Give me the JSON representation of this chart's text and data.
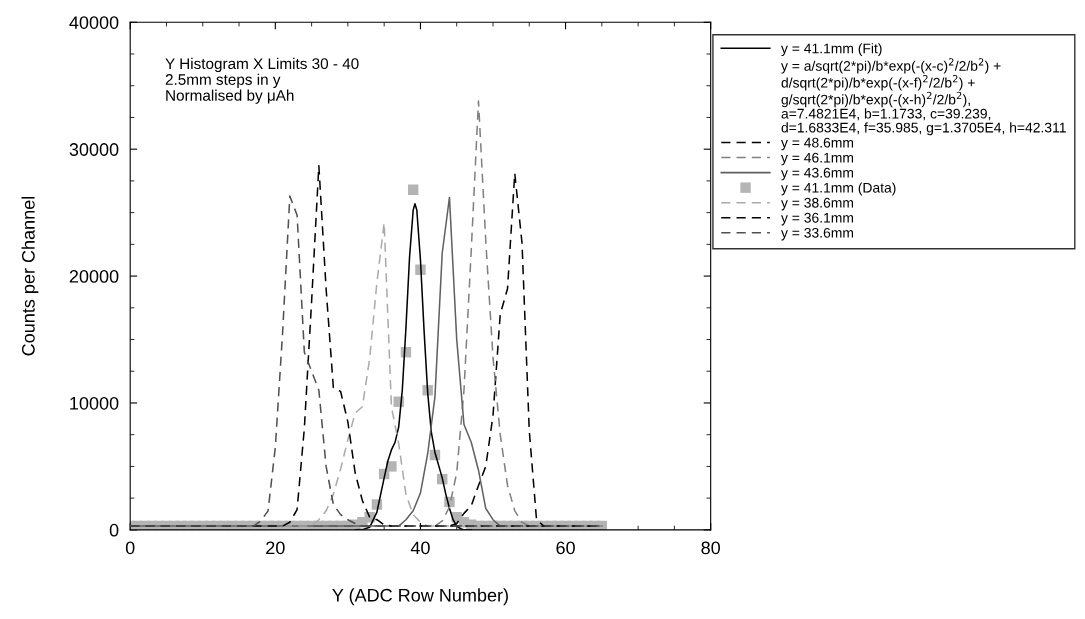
{
  "chart_data": {
    "type": "line",
    "xlabel": "Y (ADC Row Number)",
    "ylabel": "Counts per Channel",
    "xlim": [
      0,
      80
    ],
    "xticks": [
      0,
      20,
      40,
      60,
      80
    ],
    "ylim": [
      0,
      40000
    ],
    "yticks": [
      0,
      10000,
      20000,
      30000,
      40000
    ],
    "grid": false,
    "legend": "top right",
    "annotations": [
      "Y Histogram X Limits 30 - 40",
      "2.5mm steps in y",
      "Normalised by μAh",
      "y = a/sqrt(2*pi)/b*exp(-(x-c)$^{2}$/2/b$^{2}$) +\nd/sqrt(2*pi)/b*exp(-(x-f)$^{2}$/2/b$^{2}$) +\ng/sqrt(2*pi)/b*exp(-(x-h)$^{2}$/2/b$^{2}$),\na=7.4821E4, b=1.1733, c=39.239,\nd=1.6833E4, f=35.985, g=1.3705E4, h=42.311"
    ],
    "series": [
      {
        "name": "y = 41.1mm (Fit)",
        "line_style": "solid",
        "color": "#000000",
        "x": [
          31,
          32,
          33,
          34,
          35,
          35.5,
          36,
          36.5,
          37,
          37.5,
          38,
          38.5,
          39,
          39.24,
          39.5,
          40,
          40.5,
          41,
          41.5,
          42,
          42.5,
          43,
          43.5,
          44,
          44.5,
          45,
          45.5,
          46,
          47
        ],
        "values": [
          0,
          20,
          200,
          1400,
          4100,
          5400,
          6300,
          6900,
          8100,
          11000,
          15900,
          21500,
          25200,
          25700,
          25200,
          21300,
          15700,
          10800,
          7700,
          6100,
          5100,
          4100,
          2800,
          1700,
          800,
          300,
          100,
          0,
          0
        ]
      },
      {
        "name": "y = 48.6mm",
        "line_style": "dashed",
        "color": "#000000",
        "x": [
          0,
          44,
          45,
          46,
          47,
          48,
          49,
          50,
          51,
          52,
          53,
          54,
          55,
          56,
          57,
          65
        ],
        "values": [
          300,
          300,
          500,
          1300,
          1900,
          3500,
          5000,
          9000,
          17000,
          19000,
          28100,
          22600,
          7800,
          800,
          300,
          300
        ]
      },
      {
        "name": "y = 46.1mm",
        "line_style": "dashed",
        "color": "#808080",
        "x": [
          0,
          42,
          43,
          44,
          45,
          46,
          47,
          48,
          49,
          50,
          51,
          52,
          53,
          54,
          55,
          65
        ],
        "values": [
          300,
          300,
          700,
          1800,
          4500,
          11000,
          22000,
          33800,
          22800,
          13600,
          7500,
          3500,
          1500,
          600,
          300,
          300
        ]
      },
      {
        "name": "y = 43.6mm",
        "line_style": "solid",
        "color": "#606060",
        "x": [
          0,
          37,
          38,
          39,
          40,
          41,
          42,
          43,
          44,
          45,
          46,
          47,
          48,
          49,
          50,
          51,
          65
        ],
        "values": [
          300,
          300,
          800,
          1500,
          2900,
          6000,
          10500,
          21800,
          26200,
          15000,
          8300,
          6900,
          4700,
          1700,
          800,
          300,
          300
        ]
      },
      {
        "name": "y = 41.1mm (Data)",
        "type": "scatter",
        "marker": "square",
        "color": "#b4b4b4",
        "x": [
          0,
          1,
          2,
          3,
          4,
          5,
          6,
          7,
          8,
          9,
          10,
          11,
          12,
          13,
          14,
          15,
          16,
          17,
          18,
          19,
          20,
          21,
          22,
          23,
          24,
          25,
          26,
          27,
          28,
          29,
          30,
          31,
          32,
          33,
          34,
          35,
          36,
          37,
          38,
          39,
          40,
          41,
          42,
          43,
          44,
          45,
          46,
          47,
          48,
          49,
          50,
          51,
          52,
          53,
          54,
          55,
          56,
          57,
          58,
          59,
          60,
          61,
          62,
          63,
          64,
          65
        ],
        "values": [
          300,
          300,
          300,
          300,
          300,
          300,
          300,
          300,
          300,
          300,
          300,
          300,
          300,
          300,
          300,
          300,
          300,
          300,
          300,
          300,
          300,
          300,
          300,
          300,
          300,
          300,
          300,
          300,
          300,
          300,
          300,
          400,
          600,
          1000,
          2000,
          4400,
          5000,
          10100,
          14000,
          26800,
          20500,
          11000,
          5900,
          4000,
          2200,
          1000,
          600,
          400,
          300,
          300,
          300,
          300,
          300,
          300,
          300,
          300,
          300,
          300,
          300,
          300,
          300,
          300,
          300,
          300,
          300,
          300
        ]
      },
      {
        "name": "y = 38.6mm",
        "line_style": "dashed",
        "color": "#aaaaaa",
        "x": [
          0,
          25,
          26,
          27,
          28,
          29,
          30,
          31,
          32,
          33,
          34,
          35,
          36,
          37,
          38,
          39,
          40,
          41,
          65
        ],
        "values": [
          300,
          300,
          800,
          1500,
          2800,
          4800,
          7100,
          9200,
          9700,
          13500,
          19500,
          24200,
          9700,
          6800,
          2800,
          1200,
          600,
          300,
          300
        ]
      },
      {
        "name": "y = 36.1mm",
        "line_style": "dashed",
        "color": "#000000",
        "x": [
          0,
          21,
          22,
          23,
          24,
          25,
          26,
          27,
          28,
          29,
          30,
          31,
          32,
          33,
          34,
          35,
          36,
          65
        ],
        "values": [
          300,
          300,
          600,
          1600,
          8000,
          18000,
          28700,
          19000,
          11200,
          10900,
          8500,
          4500,
          2300,
          1000,
          800,
          400,
          300,
          300
        ]
      },
      {
        "name": "y = 33.6mm",
        "line_style": "dashed",
        "color": "#505050",
        "x": [
          0,
          17,
          18,
          19,
          20,
          21,
          22,
          23,
          24,
          25,
          26,
          27,
          28,
          29,
          30,
          31,
          32,
          65
        ],
        "values": [
          300,
          300,
          700,
          1500,
          6500,
          15500,
          26300,
          24800,
          14000,
          12500,
          11000,
          5000,
          2000,
          1200,
          800,
          500,
          300,
          300
        ]
      }
    ]
  }
}
